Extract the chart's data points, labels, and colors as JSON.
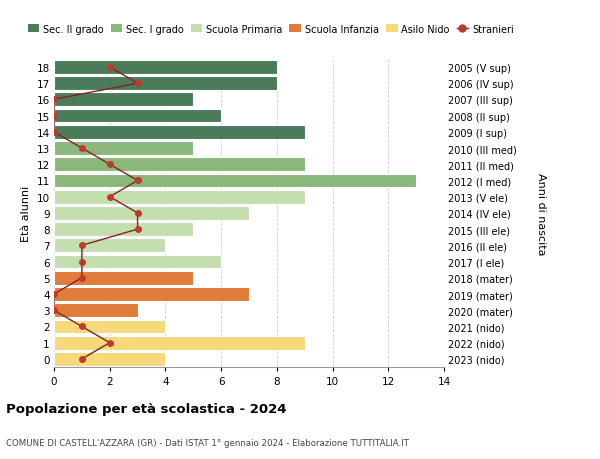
{
  "ages": [
    18,
    17,
    16,
    15,
    14,
    13,
    12,
    11,
    10,
    9,
    8,
    7,
    6,
    5,
    4,
    3,
    2,
    1,
    0
  ],
  "bar_values": [
    8,
    8,
    5,
    6,
    9,
    5,
    9,
    13,
    9,
    7,
    5,
    4,
    6,
    5,
    7,
    3,
    4,
    9,
    4
  ],
  "bar_colors": [
    "#4a7c59",
    "#4a7c59",
    "#4a7c59",
    "#4a7c59",
    "#4a7c59",
    "#8ab87a",
    "#8ab87a",
    "#8ab87a",
    "#c5deb0",
    "#c5deb0",
    "#c5deb0",
    "#c5deb0",
    "#c5deb0",
    "#e07c3a",
    "#e07c3a",
    "#e07c3a",
    "#f5d97a",
    "#f5d97a",
    "#f5d97a"
  ],
  "stranieri_values": [
    2,
    3,
    0,
    0,
    0,
    1,
    2,
    3,
    2,
    3,
    3,
    1,
    1,
    1,
    0,
    0,
    1,
    2,
    1
  ],
  "right_labels": [
    "2005 (V sup)",
    "2006 (IV sup)",
    "2007 (III sup)",
    "2008 (II sup)",
    "2009 (I sup)",
    "2010 (III med)",
    "2011 (II med)",
    "2012 (I med)",
    "2013 (V ele)",
    "2014 (IV ele)",
    "2015 (III ele)",
    "2016 (II ele)",
    "2017 (I ele)",
    "2018 (mater)",
    "2019 (mater)",
    "2020 (mater)",
    "2021 (nido)",
    "2022 (nido)",
    "2023 (nido)"
  ],
  "legend_labels": [
    "Sec. II grado",
    "Sec. I grado",
    "Scuola Primaria",
    "Scuola Infanzia",
    "Asilo Nido",
    "Stranieri"
  ],
  "legend_colors": [
    "#4a7c59",
    "#8ab87a",
    "#c5deb0",
    "#e07c3a",
    "#f5d97a",
    "#c0392b"
  ],
  "ylabel": "Età alunni",
  "right_ylabel": "Anni di nascita",
  "title": "Popolazione per età scolastica - 2024",
  "subtitle": "COMUNE DI CASTELL'AZZARA (GR) - Dati ISTAT 1° gennaio 2024 - Elaborazione TUTTITALIA.IT",
  "xlim": [
    0,
    14
  ],
  "xticks": [
    0,
    2,
    4,
    6,
    8,
    10,
    12,
    14
  ],
  "background_color": "#ffffff",
  "grid_color": "#cccccc",
  "stranieri_color": "#c0392b",
  "stranieri_line_color": "#8b2020"
}
